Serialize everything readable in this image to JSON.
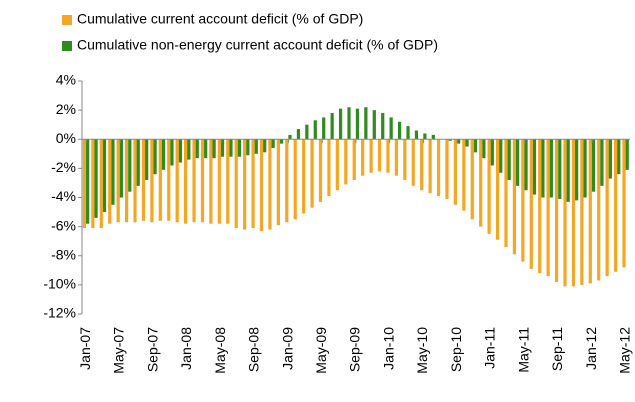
{
  "chart_data": {
    "type": "bar",
    "categories": [
      "Jan-07",
      null,
      null,
      null,
      "May-07",
      null,
      null,
      null,
      "Sep-07",
      null,
      null,
      null,
      "Jan-08",
      null,
      null,
      null,
      "May-08",
      null,
      null,
      null,
      "Sep-08",
      null,
      null,
      null,
      "Jan-09",
      null,
      null,
      null,
      "May-09",
      null,
      null,
      null,
      "Sep-09",
      null,
      null,
      null,
      "Jan-10",
      null,
      null,
      null,
      "May-10",
      null,
      null,
      null,
      "Sep-10",
      null,
      null,
      null,
      "Jan-11",
      null,
      null,
      null,
      "May-11",
      null,
      null,
      null,
      "Sep-11",
      null,
      null,
      null,
      "Jan-12",
      null,
      null,
      null,
      "May-12"
    ],
    "series": [
      {
        "name": "Cumulative current account deficit (% of GDP)",
        "color": "#f5a623",
        "values": [
          -6.1,
          -6.1,
          -6.1,
          -5.8,
          -5.7,
          -5.7,
          -5.7,
          -5.6,
          -5.7,
          -5.6,
          -5.6,
          -5.7,
          -5.8,
          -5.7,
          -5.7,
          -5.8,
          -5.8,
          -5.8,
          -6.1,
          -6.2,
          -6.1,
          -6.3,
          -6.2,
          -5.9,
          -5.7,
          -5.5,
          -5.1,
          -4.7,
          -4.3,
          -3.9,
          -3.5,
          -3.1,
          -2.8,
          -2.5,
          -2.3,
          -2.2,
          -2.3,
          -2.5,
          -2.8,
          -3.2,
          -3.5,
          -3.7,
          -3.9,
          -4.1,
          -4.5,
          -4.9,
          -5.5,
          -6.0,
          -6.5,
          -6.9,
          -7.4,
          -7.9,
          -8.4,
          -8.9,
          -9.2,
          -9.4,
          -9.8,
          -10.1,
          -10.1,
          -10.0,
          -9.9,
          -9.7,
          -9.4,
          -9.1,
          -8.8
        ]
      },
      {
        "name": "Cumulative non-energy current account deficit (% of GDP)",
        "color": "#2e8b1e",
        "values": [
          -5.8,
          -5.4,
          -5.0,
          -4.5,
          -4.0,
          -3.6,
          -3.2,
          -2.8,
          -2.4,
          -2.1,
          -1.8,
          -1.6,
          -1.4,
          -1.3,
          -1.3,
          -1.3,
          -1.2,
          -1.2,
          -1.2,
          -1.1,
          -1.0,
          -0.9,
          -0.6,
          -0.3,
          0.3,
          0.7,
          1.0,
          1.3,
          1.5,
          1.8,
          2.1,
          2.2,
          2.1,
          2.2,
          2.0,
          1.8,
          1.5,
          1.2,
          0.9,
          0.6,
          0.4,
          0.3,
          0,
          -0.1,
          -0.3,
          -0.5,
          -0.9,
          -1.3,
          -1.8,
          -2.3,
          -2.8,
          -3.2,
          -3.5,
          -3.8,
          -4.0,
          -4.0,
          -4.1,
          -4.3,
          -4.2,
          -4.0,
          -3.6,
          -3.2,
          -2.7,
          -2.4,
          -2.1
        ]
      }
    ],
    "ylim": [
      -12,
      4
    ],
    "yticks": [
      {
        "value": 4,
        "label": "4%"
      },
      {
        "value": 2,
        "label": "2%"
      },
      {
        "value": 0,
        "label": "0%"
      },
      {
        "value": -2,
        "label": "-2%"
      },
      {
        "value": -4,
        "label": "-4%"
      },
      {
        "value": -6,
        "label": "-6%"
      },
      {
        "value": -8,
        "label": "-8%"
      },
      {
        "value": -10,
        "label": "-10%"
      },
      {
        "value": -12,
        "label": "-12%"
      }
    ]
  }
}
